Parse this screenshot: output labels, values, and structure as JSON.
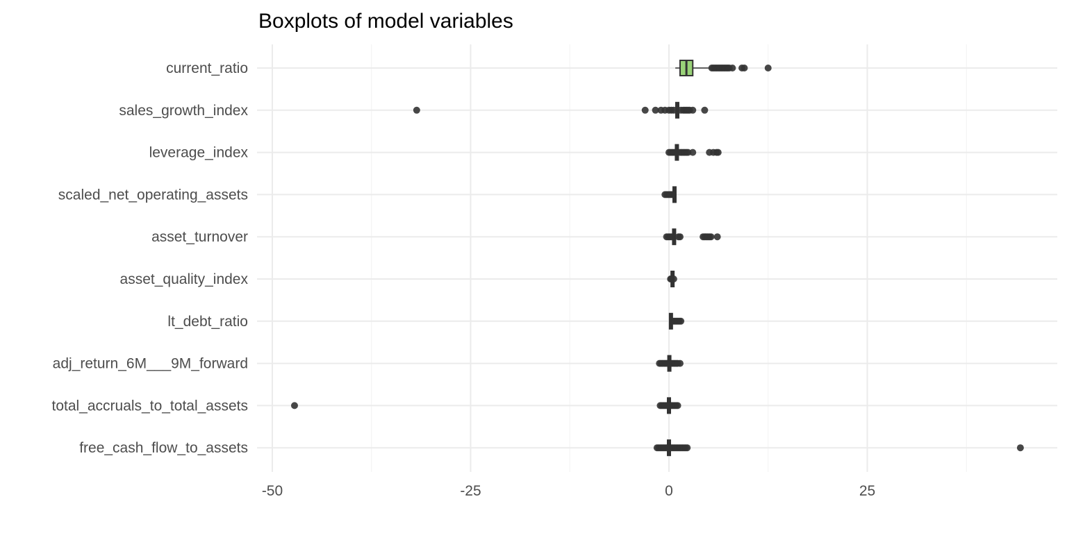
{
  "chart_data": {
    "type": "boxplot",
    "title": "Boxplots of model variables",
    "xlabel": "",
    "ylabel": "",
    "xlim": [
      -50,
      49
    ],
    "x_ticks": [
      -50,
      -25,
      0,
      25
    ],
    "x_tick_labels": [
      "-50",
      "-25",
      "0",
      "25"
    ],
    "grid": true,
    "legend": "none",
    "colors": {
      "box_fill": "#99d278",
      "box_stroke": "#333333",
      "outlier": "#333333",
      "grid_major": "#ebebeb",
      "grid_minor": "#f2f2f2"
    },
    "categories": [
      "current_ratio",
      "sales_growth_index",
      "leverage_index",
      "scaled_net_operating_assets",
      "asset_turnover",
      "asset_quality_index",
      "lt_debt_ratio",
      "adj_return_6M___9M_forward",
      "total_accruals_to_total_assets",
      "free_cash_flow_to_assets"
    ],
    "boxes": [
      {
        "name": "current_ratio",
        "min": 0.8,
        "q1": 1.4,
        "median": 2.2,
        "q3": 3.0,
        "max": 5.2,
        "outliers": [
          5.4,
          5.6,
          5.8,
          6.0,
          6.2,
          6.4,
          6.6,
          6.8,
          7.0,
          7.2,
          7.4,
          7.6,
          8.0,
          9.2,
          9.5,
          12.5
        ]
      },
      {
        "name": "sales_growth_index",
        "min": 1.0,
        "q1": 1.0,
        "median": 1.05,
        "q3": 1.1,
        "max": 1.1,
        "outliers": [
          -31.8,
          -3.0,
          -1.7,
          -1.0,
          -0.5,
          0.0,
          0.3,
          0.6,
          1.5,
          1.8,
          2.0,
          2.2,
          2.4,
          2.6,
          3.0,
          4.5
        ]
      },
      {
        "name": "leverage_index",
        "min": 1.0,
        "q1": 1.0,
        "median": 1.0,
        "q3": 1.05,
        "max": 1.05,
        "outliers": [
          0.0,
          0.2,
          0.4,
          0.6,
          0.8,
          1.4,
          1.6,
          1.8,
          2.0,
          2.2,
          2.4,
          3.0,
          5.1,
          5.6,
          6.0,
          6.2
        ]
      },
      {
        "name": "scaled_net_operating_assets",
        "min": 0.6,
        "q1": 0.65,
        "median": 0.7,
        "q3": 0.75,
        "max": 0.8,
        "outliers": [
          -0.5,
          -0.3,
          -0.1,
          0.1,
          0.3,
          0.5
        ]
      },
      {
        "name": "asset_turnover",
        "min": 0.55,
        "q1": 0.6,
        "median": 0.65,
        "q3": 0.7,
        "max": 0.75,
        "outliers": [
          -0.3,
          -0.1,
          0.1,
          0.3,
          1.2,
          1.4,
          4.3,
          4.5,
          4.7,
          4.9,
          5.1,
          5.3,
          6.1
        ]
      },
      {
        "name": "asset_quality_index",
        "min": 0.4,
        "q1": 0.42,
        "median": 0.45,
        "q3": 0.48,
        "max": 0.5,
        "outliers": [
          0.2,
          0.3,
          0.6
        ]
      },
      {
        "name": "lt_debt_ratio",
        "min": 0.2,
        "q1": 0.22,
        "median": 0.25,
        "q3": 0.28,
        "max": 0.3,
        "outliers": [
          0.5,
          0.7,
          0.9,
          1.1,
          1.3,
          1.5
        ]
      },
      {
        "name": "adj_return_6M___9M_forward",
        "min": 0.0,
        "q1": 0.02,
        "median": 0.05,
        "q3": 0.08,
        "max": 0.1,
        "outliers": [
          -1.2,
          -1.0,
          -0.8,
          -0.6,
          -0.4,
          -0.2,
          0.3,
          0.5,
          0.7,
          0.9,
          1.1,
          1.4
        ]
      },
      {
        "name": "total_accruals_to_total_assets",
        "min": -0.05,
        "q1": -0.03,
        "median": 0.0,
        "q3": 0.03,
        "max": 0.05,
        "outliers": [
          -47.2,
          -1.1,
          -0.9,
          -0.7,
          -0.5,
          -0.3,
          0.3,
          0.5,
          0.7,
          0.9,
          1.1
        ]
      },
      {
        "name": "free_cash_flow_to_assets",
        "min": -0.05,
        "q1": -0.02,
        "median": 0.0,
        "q3": 0.02,
        "max": 0.05,
        "outliers": [
          -1.5,
          -1.3,
          -1.1,
          -0.9,
          -0.7,
          -0.5,
          -0.3,
          0.3,
          0.5,
          0.7,
          0.9,
          1.1,
          1.3,
          1.5,
          1.7,
          1.9,
          2.1,
          2.3,
          44.3
        ]
      }
    ]
  }
}
